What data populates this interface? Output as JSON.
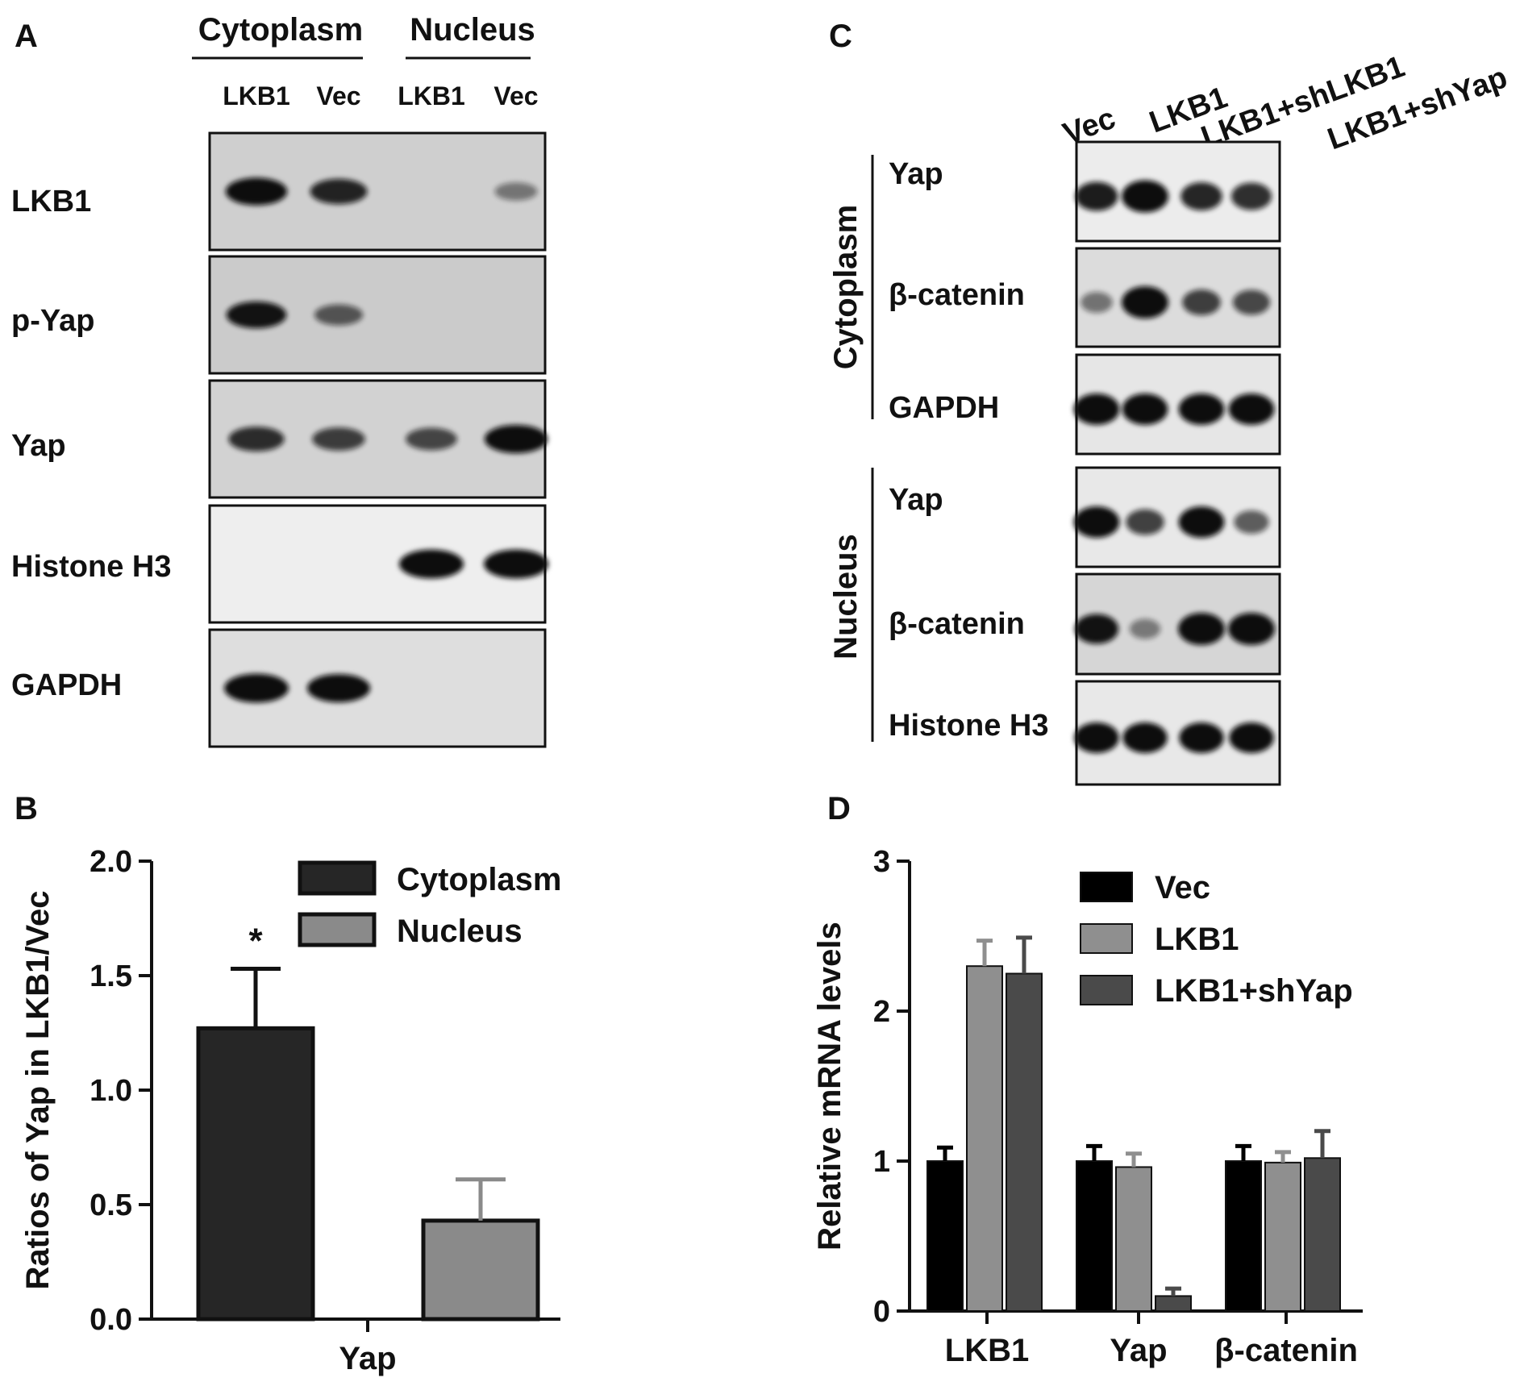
{
  "panel_letters": {
    "a": "A",
    "b": "B",
    "c": "C",
    "d": "D"
  },
  "panel_a": {
    "group_labels": [
      "Cytoplasm",
      "Nucleus"
    ],
    "lane_labels": [
      "LKB1",
      "Vec",
      "LKB1",
      "Vec"
    ],
    "blots": [
      {
        "label": "LKB1",
        "intensity": [
          0.9,
          0.75,
          0.0,
          0.25
        ],
        "background": "#cfcfcf"
      },
      {
        "label": "p-Yap",
        "intensity": [
          0.85,
          0.45,
          0.0,
          0.0
        ],
        "background": "#cbcbcb"
      },
      {
        "label": "Yap",
        "intensity": [
          0.7,
          0.6,
          0.55,
          0.95
        ],
        "background": "#d2d2d2"
      },
      {
        "label": "Histone H3",
        "intensity": [
          0.0,
          0.0,
          1.0,
          1.0
        ],
        "background": "#eeeeee"
      },
      {
        "label": "GAPDH",
        "intensity": [
          1.0,
          0.95,
          0.0,
          0.0
        ],
        "background": "#dedede"
      }
    ]
  },
  "panel_c": {
    "lane_labels": [
      "Vec",
      "LKB1",
      "LKB1+shLKB1",
      "LKB1+shYap"
    ],
    "section_labels": [
      "Cytoplasm",
      "Nucleus"
    ],
    "blots": [
      {
        "label": "Yap",
        "section": "Cytoplasm",
        "intensity": [
          0.8,
          1.0,
          0.75,
          0.7
        ],
        "background": "#ececec"
      },
      {
        "label": "β-catenin",
        "section": "Cytoplasm",
        "intensity": [
          0.3,
          1.0,
          0.6,
          0.55
        ],
        "background": "#dcdcdc"
      },
      {
        "label": "GAPDH",
        "section": "Cytoplasm",
        "intensity": [
          0.95,
          0.95,
          0.95,
          0.95
        ],
        "background": "#e6e6e6"
      },
      {
        "label": "Yap",
        "section": "Nucleus",
        "intensity": [
          0.95,
          0.6,
          0.95,
          0.45
        ],
        "background": "#e8e8e8"
      },
      {
        "label": "β-catenin",
        "section": "Nucleus",
        "intensity": [
          0.85,
          0.25,
          1.0,
          1.0
        ],
        "background": "#d6d6d6"
      },
      {
        "label": "Histone H3",
        "section": "Nucleus",
        "intensity": [
          0.9,
          0.9,
          0.9,
          0.9
        ],
        "background": "#e8e8e8"
      }
    ]
  },
  "colors": {
    "dark_bar": "#262626",
    "mid_bar": "#8a8a8a",
    "black_bar": "#000000",
    "light_bar": "#8f8f8f",
    "darkgray_bar": "#4a4a4a",
    "band": "#111111"
  },
  "chart_data": [
    {
      "type": "bar",
      "panel": "B",
      "categories": [
        "Yap"
      ],
      "series": [
        {
          "name": "Cytoplasm",
          "values": [
            1.27
          ],
          "errors": [
            0.26
          ]
        },
        {
          "name": "Nucleus",
          "values": [
            0.43
          ],
          "errors": [
            0.18
          ]
        }
      ],
      "ylabel": "Ratios of Yap in LKB1/Vec",
      "xlabel": "",
      "ylim": [
        0,
        2.0
      ],
      "yticks": [
        0.0,
        0.5,
        1.0,
        1.5,
        2.0
      ],
      "ytick_labels": [
        "0.0",
        "0.5",
        "1.0",
        "1.5",
        "2.0"
      ],
      "annotation": "*",
      "legend": "top-right"
    },
    {
      "type": "bar",
      "panel": "D",
      "categories": [
        "LKB1",
        "Yap",
        "β-catenin"
      ],
      "series": [
        {
          "name": "Vec",
          "values": [
            1.0,
            1.0,
            1.0
          ],
          "errors": [
            0.09,
            0.1,
            0.1
          ]
        },
        {
          "name": "LKB1",
          "values": [
            2.3,
            0.96,
            0.99
          ],
          "errors": [
            0.17,
            0.09,
            0.07
          ]
        },
        {
          "name": "LKB1+shYap",
          "values": [
            2.25,
            0.1,
            1.02
          ],
          "errors": [
            0.24,
            0.05,
            0.18
          ]
        }
      ],
      "ylabel": "Relative mRNA levels",
      "xlabel": "",
      "ylim": [
        0,
        3
      ],
      "yticks": [
        0,
        1,
        2,
        3
      ],
      "ytick_labels": [
        "0",
        "1",
        "2",
        "3"
      ],
      "legend": "top-right"
    }
  ]
}
